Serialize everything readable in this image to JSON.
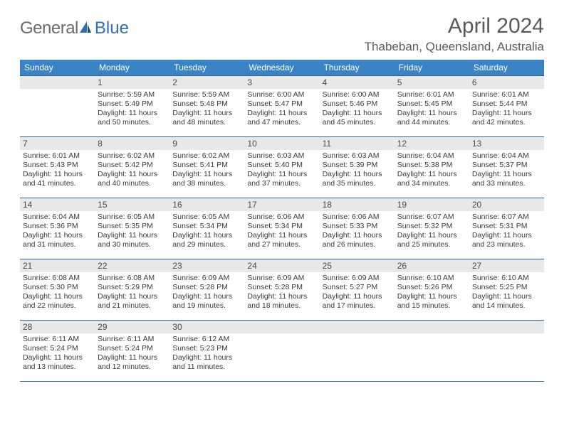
{
  "logo": {
    "part1": "General",
    "part2": "Blue"
  },
  "title": "April 2024",
  "location": "Thabeban, Queensland, Australia",
  "colors": {
    "header_bg": "#3a83c5",
    "row_border": "#2c5f8c",
    "daynum_bg": "#e8e8e8",
    "text": "#3a3a3a",
    "title_text": "#5a5a5a",
    "logo_gray": "#6b6b6b",
    "logo_blue": "#2f6fb0"
  },
  "dayNames": [
    "Sunday",
    "Monday",
    "Tuesday",
    "Wednesday",
    "Thursday",
    "Friday",
    "Saturday"
  ],
  "weeks": [
    [
      {
        "day": "",
        "sunrise": "",
        "sunset": "",
        "daylight": ""
      },
      {
        "day": "1",
        "sunrise": "Sunrise: 5:59 AM",
        "sunset": "Sunset: 5:49 PM",
        "daylight": "Daylight: 11 hours and 50 minutes."
      },
      {
        "day": "2",
        "sunrise": "Sunrise: 5:59 AM",
        "sunset": "Sunset: 5:48 PM",
        "daylight": "Daylight: 11 hours and 48 minutes."
      },
      {
        "day": "3",
        "sunrise": "Sunrise: 6:00 AM",
        "sunset": "Sunset: 5:47 PM",
        "daylight": "Daylight: 11 hours and 47 minutes."
      },
      {
        "day": "4",
        "sunrise": "Sunrise: 6:00 AM",
        "sunset": "Sunset: 5:46 PM",
        "daylight": "Daylight: 11 hours and 45 minutes."
      },
      {
        "day": "5",
        "sunrise": "Sunrise: 6:01 AM",
        "sunset": "Sunset: 5:45 PM",
        "daylight": "Daylight: 11 hours and 44 minutes."
      },
      {
        "day": "6",
        "sunrise": "Sunrise: 6:01 AM",
        "sunset": "Sunset: 5:44 PM",
        "daylight": "Daylight: 11 hours and 42 minutes."
      }
    ],
    [
      {
        "day": "7",
        "sunrise": "Sunrise: 6:01 AM",
        "sunset": "Sunset: 5:43 PM",
        "daylight": "Daylight: 11 hours and 41 minutes."
      },
      {
        "day": "8",
        "sunrise": "Sunrise: 6:02 AM",
        "sunset": "Sunset: 5:42 PM",
        "daylight": "Daylight: 11 hours and 40 minutes."
      },
      {
        "day": "9",
        "sunrise": "Sunrise: 6:02 AM",
        "sunset": "Sunset: 5:41 PM",
        "daylight": "Daylight: 11 hours and 38 minutes."
      },
      {
        "day": "10",
        "sunrise": "Sunrise: 6:03 AM",
        "sunset": "Sunset: 5:40 PM",
        "daylight": "Daylight: 11 hours and 37 minutes."
      },
      {
        "day": "11",
        "sunrise": "Sunrise: 6:03 AM",
        "sunset": "Sunset: 5:39 PM",
        "daylight": "Daylight: 11 hours and 35 minutes."
      },
      {
        "day": "12",
        "sunrise": "Sunrise: 6:04 AM",
        "sunset": "Sunset: 5:38 PM",
        "daylight": "Daylight: 11 hours and 34 minutes."
      },
      {
        "day": "13",
        "sunrise": "Sunrise: 6:04 AM",
        "sunset": "Sunset: 5:37 PM",
        "daylight": "Daylight: 11 hours and 33 minutes."
      }
    ],
    [
      {
        "day": "14",
        "sunrise": "Sunrise: 6:04 AM",
        "sunset": "Sunset: 5:36 PM",
        "daylight": "Daylight: 11 hours and 31 minutes."
      },
      {
        "day": "15",
        "sunrise": "Sunrise: 6:05 AM",
        "sunset": "Sunset: 5:35 PM",
        "daylight": "Daylight: 11 hours and 30 minutes."
      },
      {
        "day": "16",
        "sunrise": "Sunrise: 6:05 AM",
        "sunset": "Sunset: 5:34 PM",
        "daylight": "Daylight: 11 hours and 29 minutes."
      },
      {
        "day": "17",
        "sunrise": "Sunrise: 6:06 AM",
        "sunset": "Sunset: 5:34 PM",
        "daylight": "Daylight: 11 hours and 27 minutes."
      },
      {
        "day": "18",
        "sunrise": "Sunrise: 6:06 AM",
        "sunset": "Sunset: 5:33 PM",
        "daylight": "Daylight: 11 hours and 26 minutes."
      },
      {
        "day": "19",
        "sunrise": "Sunrise: 6:07 AM",
        "sunset": "Sunset: 5:32 PM",
        "daylight": "Daylight: 11 hours and 25 minutes."
      },
      {
        "day": "20",
        "sunrise": "Sunrise: 6:07 AM",
        "sunset": "Sunset: 5:31 PM",
        "daylight": "Daylight: 11 hours and 23 minutes."
      }
    ],
    [
      {
        "day": "21",
        "sunrise": "Sunrise: 6:08 AM",
        "sunset": "Sunset: 5:30 PM",
        "daylight": "Daylight: 11 hours and 22 minutes."
      },
      {
        "day": "22",
        "sunrise": "Sunrise: 6:08 AM",
        "sunset": "Sunset: 5:29 PM",
        "daylight": "Daylight: 11 hours and 21 minutes."
      },
      {
        "day": "23",
        "sunrise": "Sunrise: 6:09 AM",
        "sunset": "Sunset: 5:28 PM",
        "daylight": "Daylight: 11 hours and 19 minutes."
      },
      {
        "day": "24",
        "sunrise": "Sunrise: 6:09 AM",
        "sunset": "Sunset: 5:28 PM",
        "daylight": "Daylight: 11 hours and 18 minutes."
      },
      {
        "day": "25",
        "sunrise": "Sunrise: 6:09 AM",
        "sunset": "Sunset: 5:27 PM",
        "daylight": "Daylight: 11 hours and 17 minutes."
      },
      {
        "day": "26",
        "sunrise": "Sunrise: 6:10 AM",
        "sunset": "Sunset: 5:26 PM",
        "daylight": "Daylight: 11 hours and 15 minutes."
      },
      {
        "day": "27",
        "sunrise": "Sunrise: 6:10 AM",
        "sunset": "Sunset: 5:25 PM",
        "daylight": "Daylight: 11 hours and 14 minutes."
      }
    ],
    [
      {
        "day": "28",
        "sunrise": "Sunrise: 6:11 AM",
        "sunset": "Sunset: 5:24 PM",
        "daylight": "Daylight: 11 hours and 13 minutes."
      },
      {
        "day": "29",
        "sunrise": "Sunrise: 6:11 AM",
        "sunset": "Sunset: 5:24 PM",
        "daylight": "Daylight: 11 hours and 12 minutes."
      },
      {
        "day": "30",
        "sunrise": "Sunrise: 6:12 AM",
        "sunset": "Sunset: 5:23 PM",
        "daylight": "Daylight: 11 hours and 11 minutes."
      },
      {
        "day": "",
        "sunrise": "",
        "sunset": "",
        "daylight": ""
      },
      {
        "day": "",
        "sunrise": "",
        "sunset": "",
        "daylight": ""
      },
      {
        "day": "",
        "sunrise": "",
        "sunset": "",
        "daylight": ""
      },
      {
        "day": "",
        "sunrise": "",
        "sunset": "",
        "daylight": ""
      }
    ]
  ]
}
